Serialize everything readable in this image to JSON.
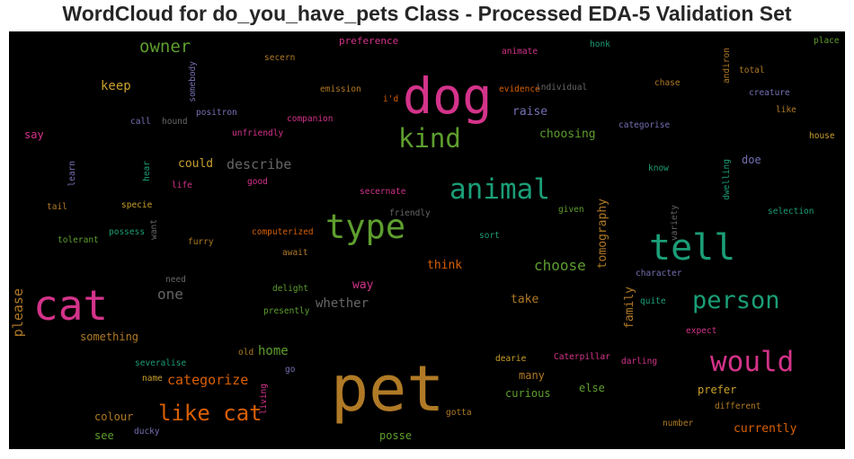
{
  "title": "WordCloud for do_you_have_pets Class - Processed EDA-5 Validation Set",
  "chart_data": {
    "type": "wordcloud",
    "background": "#000000",
    "words": [
      {
        "text": "pet",
        "weight": 1.0,
        "color": "#b07a26"
      },
      {
        "text": "dog",
        "weight": 0.75,
        "color": "#d4338a"
      },
      {
        "text": "cat",
        "weight": 0.65,
        "color": "#d4338a"
      },
      {
        "text": "tell",
        "weight": 0.62,
        "color": "#1b9e77"
      },
      {
        "text": "type",
        "weight": 0.56,
        "color": "#5e9e2e"
      },
      {
        "text": "animal",
        "weight": 0.46,
        "color": "#1b9e77"
      },
      {
        "text": "would",
        "weight": 0.46,
        "color": "#d4338a"
      },
      {
        "text": "kind",
        "weight": 0.42,
        "color": "#5e9e2e"
      },
      {
        "text": "person",
        "weight": 0.4,
        "color": "#1b9e77"
      },
      {
        "text": "like cat",
        "weight": 0.36,
        "color": "#d95f02"
      },
      {
        "text": "owner",
        "weight": 0.3,
        "color": "#5e9e2e"
      },
      {
        "text": "choose",
        "weight": 0.26,
        "color": "#5e9e2e"
      },
      {
        "text": "describe",
        "weight": 0.24,
        "color": "#666666"
      },
      {
        "text": "keep",
        "weight": 0.22,
        "color": "#c9a02c"
      },
      {
        "text": "one",
        "weight": 0.24,
        "color": "#666666"
      },
      {
        "text": "whether",
        "weight": 0.22,
        "color": "#666666"
      },
      {
        "text": "home",
        "weight": 0.22,
        "color": "#5e9e2e"
      },
      {
        "text": "categorize",
        "weight": 0.22,
        "color": "#d95f02"
      },
      {
        "text": "please",
        "weight": 0.22,
        "color": "#b07a26"
      },
      {
        "text": "could",
        "weight": 0.2,
        "color": "#c9a02c"
      },
      {
        "text": "raise",
        "weight": 0.2,
        "color": "#7570b3"
      },
      {
        "text": "choosing",
        "weight": 0.2,
        "color": "#5e9e2e"
      },
      {
        "text": "tomography",
        "weight": 0.2,
        "color": "#b07a26"
      },
      {
        "text": "family",
        "weight": 0.2,
        "color": "#b07a26"
      },
      {
        "text": "take",
        "weight": 0.2,
        "color": "#b07a26"
      },
      {
        "text": "think",
        "weight": 0.2,
        "color": "#d95f02"
      },
      {
        "text": "way",
        "weight": 0.2,
        "color": "#d4338a"
      },
      {
        "text": "say",
        "weight": 0.18,
        "color": "#d4338a"
      },
      {
        "text": "something",
        "weight": 0.18,
        "color": "#b07a26"
      },
      {
        "text": "colour",
        "weight": 0.18,
        "color": "#b07a26"
      },
      {
        "text": "see",
        "weight": 0.18,
        "color": "#5e9e2e"
      },
      {
        "text": "posse",
        "weight": 0.18,
        "color": "#5e9e2e"
      },
      {
        "text": "many",
        "weight": 0.18,
        "color": "#b07a26"
      },
      {
        "text": "curious",
        "weight": 0.18,
        "color": "#5e9e2e"
      },
      {
        "text": "else",
        "weight": 0.18,
        "color": "#5e9e2e"
      },
      {
        "text": "prefer",
        "weight": 0.18,
        "color": "#c9a02c"
      },
      {
        "text": "currently",
        "weight": 0.18,
        "color": "#d95f02"
      },
      {
        "text": "doe",
        "weight": 0.18,
        "color": "#7570b3"
      },
      {
        "text": "preference",
        "weight": 0.16,
        "color": "#d4338a"
      },
      {
        "text": "honk",
        "weight": 0.1,
        "color": "#1b9e77"
      },
      {
        "text": "place",
        "weight": 0.1,
        "color": "#5e9e2e"
      },
      {
        "text": "animate",
        "weight": 0.1,
        "color": "#d4338a"
      },
      {
        "text": "secern",
        "weight": 0.1,
        "color": "#b07a26"
      },
      {
        "text": "somebody",
        "weight": 0.1,
        "color": "#7570b3"
      },
      {
        "text": "andiron",
        "weight": 0.1,
        "color": "#b07a26"
      },
      {
        "text": "total",
        "weight": 0.1,
        "color": "#b07a26"
      },
      {
        "text": "emission",
        "weight": 0.1,
        "color": "#b07a26"
      },
      {
        "text": "evidence",
        "weight": 0.1,
        "color": "#d95f02"
      },
      {
        "text": "individual",
        "weight": 0.1,
        "color": "#666666"
      },
      {
        "text": "chase",
        "weight": 0.1,
        "color": "#b07a26"
      },
      {
        "text": "creature",
        "weight": 0.1,
        "color": "#7570b3"
      },
      {
        "text": "i'd",
        "weight": 0.1,
        "color": "#d95f02"
      },
      {
        "text": "like",
        "weight": 0.1,
        "color": "#b07a26"
      },
      {
        "text": "positron",
        "weight": 0.1,
        "color": "#7570b3"
      },
      {
        "text": "call",
        "weight": 0.1,
        "color": "#7570b3"
      },
      {
        "text": "hound",
        "weight": 0.1,
        "color": "#666666"
      },
      {
        "text": "companion",
        "weight": 0.1,
        "color": "#d4338a"
      },
      {
        "text": "categorise",
        "weight": 0.1,
        "color": "#7570b3"
      },
      {
        "text": "unfriendly",
        "weight": 0.1,
        "color": "#d4338a"
      },
      {
        "text": "house",
        "weight": 0.1,
        "color": "#c9a02c"
      },
      {
        "text": "learn",
        "weight": 0.1,
        "color": "#7570b3"
      },
      {
        "text": "hear",
        "weight": 0.1,
        "color": "#1b9e77"
      },
      {
        "text": "life",
        "weight": 0.1,
        "color": "#d4338a"
      },
      {
        "text": "good",
        "weight": 0.1,
        "color": "#d4338a"
      },
      {
        "text": "know",
        "weight": 0.1,
        "color": "#1b9e77"
      },
      {
        "text": "dwelling",
        "weight": 0.1,
        "color": "#1b9e77"
      },
      {
        "text": "specie",
        "weight": 0.1,
        "color": "#c9a02c"
      },
      {
        "text": "tail",
        "weight": 0.1,
        "color": "#b07a26"
      },
      {
        "text": "secernate",
        "weight": 0.1,
        "color": "#d4338a"
      },
      {
        "text": "friendly",
        "weight": 0.1,
        "color": "#666666"
      },
      {
        "text": "given",
        "weight": 0.1,
        "color": "#5e9e2e"
      },
      {
        "text": "variety",
        "weight": 0.1,
        "color": "#666666"
      },
      {
        "text": "selection",
        "weight": 0.1,
        "color": "#1b9e77"
      },
      {
        "text": "possess",
        "weight": 0.1,
        "color": "#1b9e77"
      },
      {
        "text": "want",
        "weight": 0.1,
        "color": "#666666"
      },
      {
        "text": "computerized",
        "weight": 0.1,
        "color": "#d95f02"
      },
      {
        "text": "sort",
        "weight": 0.1,
        "color": "#1b9e77"
      },
      {
        "text": "tolerant",
        "weight": 0.1,
        "color": "#5e9e2e"
      },
      {
        "text": "furry",
        "weight": 0.1,
        "color": "#b07a26"
      },
      {
        "text": "await",
        "weight": 0.1,
        "color": "#b07a26"
      },
      {
        "text": "character",
        "weight": 0.1,
        "color": "#7570b3"
      },
      {
        "text": "need",
        "weight": 0.1,
        "color": "#666666"
      },
      {
        "text": "delight",
        "weight": 0.1,
        "color": "#5e9e2e"
      },
      {
        "text": "quite",
        "weight": 0.1,
        "color": "#1b9e77"
      },
      {
        "text": "presently",
        "weight": 0.1,
        "color": "#5e9e2e"
      },
      {
        "text": "expect",
        "weight": 0.1,
        "color": "#d4338a"
      },
      {
        "text": "old",
        "weight": 0.1,
        "color": "#b07a26"
      },
      {
        "text": "dearie",
        "weight": 0.1,
        "color": "#c9a02c"
      },
      {
        "text": "Caterpillar",
        "weight": 0.1,
        "color": "#d4338a"
      },
      {
        "text": "darling",
        "weight": 0.1,
        "color": "#d4338a"
      },
      {
        "text": "severalise",
        "weight": 0.1,
        "color": "#1b9e77"
      },
      {
        "text": "go",
        "weight": 0.1,
        "color": "#7570b3"
      },
      {
        "text": "name",
        "weight": 0.1,
        "color": "#c9a02c"
      },
      {
        "text": "living",
        "weight": 0.1,
        "color": "#d4338a"
      },
      {
        "text": "different",
        "weight": 0.1,
        "color": "#b07a26"
      },
      {
        "text": "gotta",
        "weight": 0.1,
        "color": "#b07a26"
      },
      {
        "text": "number",
        "weight": 0.1,
        "color": "#b07a26"
      },
      {
        "text": "ducky",
        "weight": 0.1,
        "color": "#7570b3"
      }
    ]
  }
}
